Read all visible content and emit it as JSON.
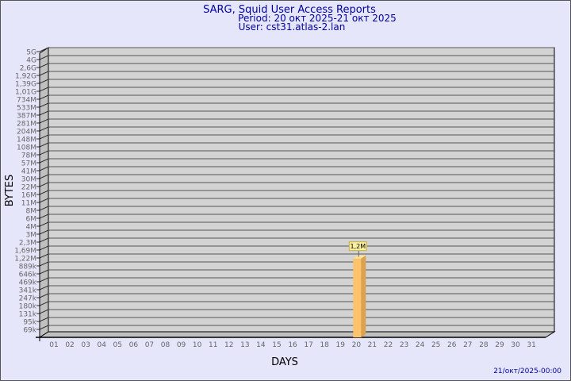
{
  "colors": {
    "background": "#e6e6fa",
    "title": "#0000a0",
    "plot": "#d3d3d3",
    "wall": "#c0c0c0",
    "bar": "#fdc36a",
    "bar_side": "#dda24e",
    "bar_top": "#fee39a",
    "label_bg": "#f8f0a0",
    "tick_text": "#666666"
  },
  "chart_data": {
    "type": "bar",
    "title": "SARG, Squid User Access Reports",
    "subtitle": [
      "Period: 20 окт 2025-21 окт 2025",
      "User: cst31.atlas-2.lan"
    ],
    "xlabel": "DAYS",
    "ylabel": "BYTES",
    "y_scale": "log",
    "y_tick_labels": [
      "5G",
      "4G",
      "2,6G",
      "1,92G",
      "1,39G",
      "1,01G",
      "734M",
      "533M",
      "387M",
      "281M",
      "204M",
      "148M",
      "108M",
      "78M",
      "57M",
      "41M",
      "30M",
      "22M",
      "16M",
      "11M",
      "8M",
      "6M",
      "4M",
      "3M",
      "2,3M",
      "1,69M",
      "1,22M",
      "889k",
      "646k",
      "469k",
      "341k",
      "247k",
      "180k",
      "131k",
      "95k",
      "69k"
    ],
    "ylim": [
      69000,
      5000000000
    ],
    "categories": [
      "01",
      "02",
      "03",
      "04",
      "05",
      "06",
      "07",
      "08",
      "09",
      "10",
      "11",
      "12",
      "13",
      "14",
      "15",
      "16",
      "17",
      "18",
      "19",
      "20",
      "21",
      "22",
      "23",
      "24",
      "25",
      "26",
      "27",
      "28",
      "29",
      "30",
      "31"
    ],
    "bars": [
      {
        "category": "20",
        "value": 1200000,
        "label": "1,2M"
      }
    ],
    "grid": true,
    "footer": "21/окт/2025-00:00"
  }
}
